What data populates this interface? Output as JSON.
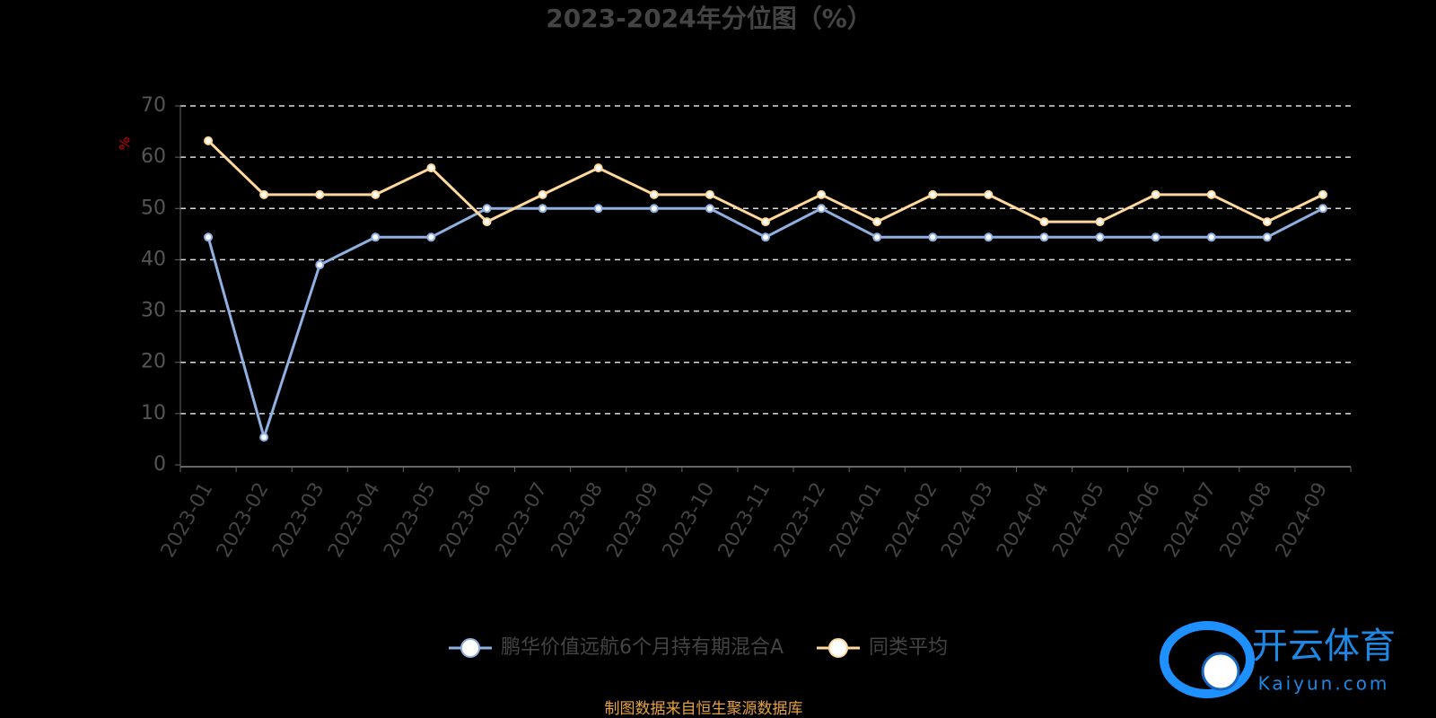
{
  "chart_data": {
    "type": "line",
    "title": "2023-2024年分位图（%）",
    "y_label": "%",
    "categories": [
      "2023-01",
      "2023-02",
      "2023-03",
      "2023-04",
      "2023-05",
      "2023-06",
      "2023-07",
      "2023-08",
      "2023-09",
      "2023-10",
      "2023-11",
      "2023-12",
      "2024-01",
      "2024-02",
      "2024-03",
      "2024-04",
      "2024-05",
      "2024-06",
      "2024-07",
      "2024-08",
      "2024-09"
    ],
    "series": [
      {
        "name": "鹏华价值远航6个月持有期混合A",
        "color": "#8fb0e0",
        "values": [
          44.4,
          5.4,
          39.0,
          44.4,
          44.4,
          50,
          50,
          50,
          50,
          50,
          44.4,
          50,
          44.4,
          44.4,
          44.4,
          44.4,
          44.4,
          44.4,
          44.4,
          44.4,
          50
        ]
      },
      {
        "name": "同类平均",
        "color": "#ffd89b",
        "values": [
          63.2,
          52.7,
          52.7,
          52.7,
          57.9,
          47.4,
          52.7,
          57.9,
          52.7,
          52.7,
          47.4,
          52.7,
          47.4,
          52.7,
          52.7,
          47.4,
          47.4,
          52.7,
          52.7,
          47.4,
          52.7
        ]
      }
    ],
    "ylim": [
      0,
      70
    ],
    "yticks": [
      0,
      10,
      20,
      30,
      40,
      50,
      60,
      70
    ],
    "grid": true,
    "legend": "bottom",
    "source": "制图数据来自恒生聚源数据库"
  },
  "watermark": {
    "brand": "开云体育",
    "site": "Kaiyun.com"
  }
}
